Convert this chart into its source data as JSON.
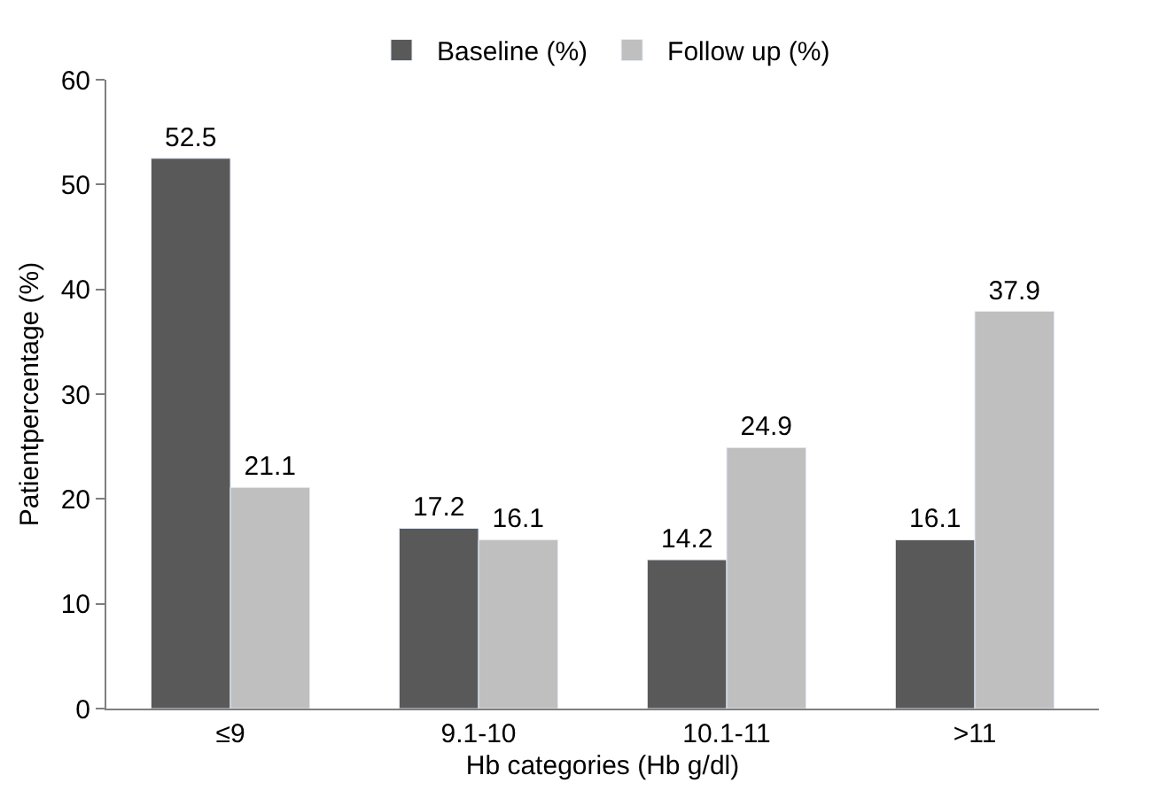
{
  "chart_data": {
    "type": "bar",
    "xlabel": "Hb categories (Hb g/dl)",
    "ylabel": "Patientpercentage (%)",
    "categories": [
      "≤9",
      "9.1-10",
      "10.1-11",
      ">11"
    ],
    "series": [
      {
        "name": "Baseline (%)",
        "color": "#595959",
        "values": [
          52.5,
          17.2,
          14.2,
          16.1
        ]
      },
      {
        "name": "Follow up (%)",
        "color": "#bfbfbf",
        "values": [
          21.1,
          16.1,
          24.9,
          37.9
        ]
      }
    ],
    "ylim": [
      0,
      60
    ],
    "yticks": [
      0,
      10,
      20,
      30,
      40,
      50,
      60
    ],
    "grid": false,
    "legend": "top",
    "data_labels": true
  }
}
